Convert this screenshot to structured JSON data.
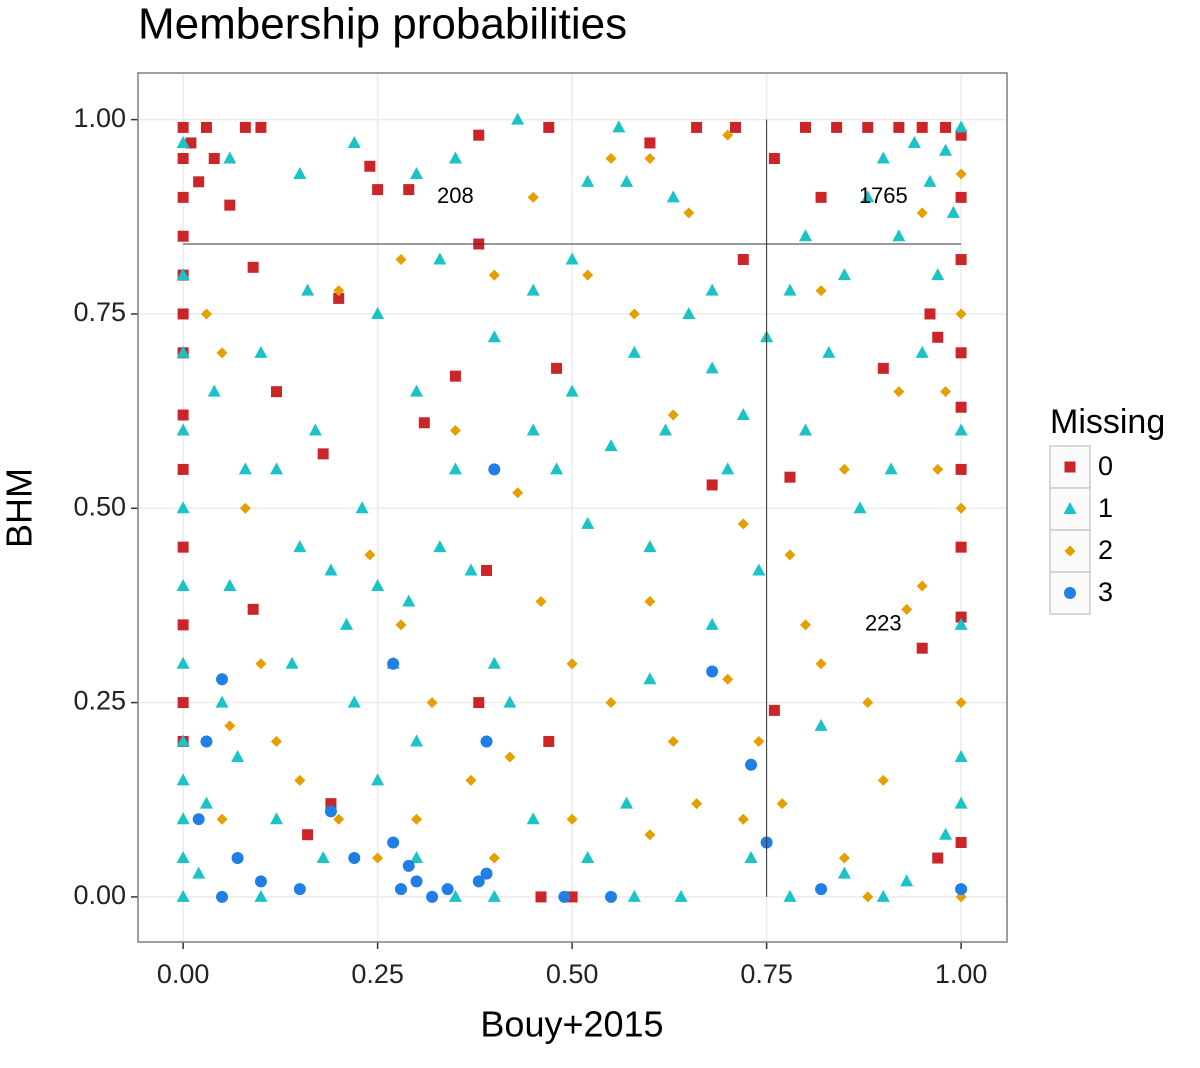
{
  "chart_data": {
    "type": "scatter",
    "title": "Membership probabilities",
    "x_label": "Bouy+2015",
    "y_label": "BHM",
    "legend_title": "Missing",
    "legend": "right",
    "grid": true,
    "xlim": [
      -0.058,
      1.059
    ],
    "ylim": [
      -0.058,
      1.06
    ],
    "xticks": [
      {
        "value": 0,
        "label": "0.00"
      },
      {
        "value": 0.25,
        "label": "0.25"
      },
      {
        "value": 0.5,
        "label": "0.50"
      },
      {
        "value": 0.75,
        "label": "0.75"
      },
      {
        "value": 1,
        "label": "1.00"
      }
    ],
    "yticks": [
      {
        "value": 0,
        "label": "0.00"
      },
      {
        "value": 0.25,
        "label": "0.25"
      },
      {
        "value": 0.5,
        "label": "0.50"
      },
      {
        "value": 0.75,
        "label": "0.75"
      },
      {
        "value": 1,
        "label": "1.00"
      }
    ],
    "reference_lines": [
      {
        "x": [
          0.75,
          0.75
        ],
        "y": [
          0,
          1
        ]
      },
      {
        "x": [
          0,
          1
        ],
        "y": [
          0.84,
          0.84
        ]
      }
    ],
    "annotations": [
      {
        "text": "208",
        "x": 0.35,
        "y": 0.9
      },
      {
        "text": "1765",
        "x": 0.9,
        "y": 0.9
      },
      {
        "text": "223",
        "x": 0.9,
        "y": 0.35
      }
    ],
    "series": [
      {
        "name": "0",
        "color": "#cc2529",
        "shape": "square",
        "x": [
          0,
          0,
          0,
          0,
          0,
          0,
          0,
          0,
          0,
          0,
          0,
          0,
          0,
          0.01,
          0.03,
          0.04,
          0.02,
          0.08,
          0.1,
          0.09,
          0.06,
          0.24,
          0.25,
          0.29,
          0.38,
          0.47,
          0.6,
          0.66,
          0.71,
          0.76,
          0.8,
          0.84,
          0.88,
          0.92,
          0.95,
          0.98,
          1,
          1,
          1,
          1,
          1,
          1,
          1,
          0.96,
          0.9,
          0.97,
          0.82,
          0.72,
          0.38,
          0.35,
          0.31,
          0.18,
          0.2,
          0.12,
          0.09,
          0.19,
          0.16,
          0.47,
          0.39,
          0.68,
          0.78,
          0.76,
          0.95,
          1,
          0.48,
          0.5,
          0.46,
          0.97,
          1,
          0.38
        ],
        "values": [
          0.99,
          0.95,
          0.9,
          0.85,
          0.8,
          0.75,
          0.7,
          0.62,
          0.55,
          0.45,
          0.35,
          0.25,
          0.2,
          0.97,
          0.99,
          0.95,
          0.92,
          0.99,
          0.99,
          0.81,
          0.89,
          0.94,
          0.91,
          0.91,
          0.98,
          0.99,
          0.97,
          0.99,
          0.99,
          0.95,
          0.99,
          0.99,
          0.99,
          0.99,
          0.99,
          0.99,
          0.98,
          0.9,
          0.82,
          0.7,
          0.63,
          0.55,
          0.45,
          0.75,
          0.68,
          0.72,
          0.9,
          0.82,
          0.84,
          0.67,
          0.61,
          0.57,
          0.77,
          0.65,
          0.37,
          0.12,
          0.08,
          0.2,
          0.42,
          0.53,
          0.54,
          0.24,
          0.32,
          0.36,
          0.68,
          0,
          0,
          0.05,
          0.07,
          0.25
        ]
      },
      {
        "name": "1",
        "color": "#1cc3c6",
        "shape": "triangle",
        "x": [
          0,
          0,
          0,
          0,
          0,
          0,
          0,
          0,
          0,
          0,
          0,
          0,
          0.02,
          0.03,
          0.05,
          0.06,
          0.08,
          0.1,
          0.04,
          0.07,
          0.12,
          0.14,
          0.15,
          0.17,
          0.19,
          0.21,
          0.23,
          0.25,
          0.27,
          0.29,
          0.3,
          0.33,
          0.35,
          0.37,
          0.4,
          0.42,
          0.45,
          0.48,
          0.5,
          0.52,
          0.55,
          0.58,
          0.6,
          0.62,
          0.65,
          0.68,
          0.7,
          0.72,
          0.75,
          0.78,
          0.8,
          0.83,
          0.85,
          0.88,
          0.9,
          0.92,
          0.94,
          0.96,
          0.98,
          1,
          0.99,
          0.97,
          0.95,
          1,
          1,
          1,
          1,
          0.98,
          0.93,
          0.9,
          0.85,
          0.78,
          0.73,
          0.74,
          0.68,
          0.6,
          0.57,
          0.52,
          0.45,
          0.4,
          0.35,
          0.3,
          0.25,
          0.22,
          0.18,
          0.1,
          0.35,
          0.43,
          0.3,
          0.22,
          0.15,
          0.52,
          0.56,
          0.63,
          0.57,
          0.68,
          0.45,
          0.25,
          0.3,
          0.4,
          0.12,
          0.82,
          0.87,
          0.91,
          0.8,
          0.64,
          0.58,
          0.06,
          0.16,
          0.33,
          0.5
        ],
        "values": [
          0,
          0.05,
          0.1,
          0.15,
          0.2,
          0.3,
          0.4,
          0.5,
          0.6,
          0.7,
          0.8,
          0.97,
          0.03,
          0.12,
          0.25,
          0.4,
          0.55,
          0.7,
          0.65,
          0.18,
          0.1,
          0.3,
          0.45,
          0.6,
          0.42,
          0.35,
          0.5,
          0.4,
          0.3,
          0.38,
          0.2,
          0.45,
          0.55,
          0.42,
          0.3,
          0.25,
          0.6,
          0.55,
          0.65,
          0.48,
          0.58,
          0.7,
          0.45,
          0.6,
          0.75,
          0.68,
          0.55,
          0.62,
          0.72,
          0.78,
          0.85,
          0.7,
          0.8,
          0.9,
          0.95,
          0.85,
          0.97,
          0.92,
          0.96,
          0.99,
          0.88,
          0.8,
          0.7,
          0.6,
          0.35,
          0.18,
          0.12,
          0.08,
          0.02,
          0,
          0.03,
          0,
          0.05,
          0.42,
          0.35,
          0.28,
          0.12,
          0.05,
          0.1,
          0,
          0,
          0.05,
          0.15,
          0.25,
          0.05,
          0,
          0.95,
          1,
          0.93,
          0.97,
          0.93,
          0.92,
          0.99,
          0.9,
          0.92,
          0.78,
          0.78,
          0.75,
          0.65,
          0.72,
          0.55,
          0.22,
          0.5,
          0.55,
          0.6,
          0,
          0,
          0.95,
          0.78,
          0.82,
          0.82
        ]
      },
      {
        "name": "2",
        "color": "#e69f00",
        "shape": "diamond",
        "x": [
          0.03,
          0.05,
          0.08,
          0.1,
          0.12,
          0.15,
          0.2,
          0.25,
          0.05,
          0.06,
          0.28,
          0.32,
          0.37,
          0.42,
          0.46,
          0.5,
          0.55,
          0.6,
          0.63,
          0.66,
          0.7,
          0.72,
          0.74,
          0.77,
          0.8,
          0.82,
          0.85,
          0.88,
          0.9,
          0.93,
          0.95,
          0.97,
          1,
          1,
          0.98,
          0.92,
          0.85,
          0.95,
          1,
          0.82,
          0.7,
          0.65,
          0.55,
          0.45,
          0.52,
          0.58,
          0.4,
          0.28,
          0.2,
          0.35,
          0.43,
          0.63,
          0.72,
          0.78,
          0.6,
          0.5,
          0.3,
          0.4,
          1,
          1,
          0.88,
          0.6,
          0.24
        ],
        "values": [
          0.75,
          0.7,
          0.5,
          0.3,
          0.2,
          0.15,
          0.1,
          0.05,
          0.1,
          0.22,
          0.35,
          0.25,
          0.15,
          0.18,
          0.38,
          0.1,
          0.25,
          0.08,
          0.2,
          0.12,
          0.28,
          0.1,
          0.2,
          0.12,
          0.35,
          0.3,
          0.05,
          0.25,
          0.15,
          0.37,
          0.4,
          0.55,
          0.5,
          0.75,
          0.65,
          0.65,
          0.55,
          0.88,
          0.93,
          0.78,
          0.98,
          0.88,
          0.95,
          0.9,
          0.8,
          0.75,
          0.8,
          0.82,
          0.78,
          0.6,
          0.52,
          0.62,
          0.48,
          0.44,
          0.38,
          0.3,
          0.1,
          0.05,
          0.25,
          0,
          0,
          0.95,
          0.44
        ]
      },
      {
        "name": "3",
        "color": "#1f7fe6",
        "shape": "circle",
        "x": [
          0.4,
          0.05,
          0.27,
          0.39,
          0.68,
          0.73,
          0.75,
          0.19,
          0.22,
          0.27,
          0.29,
          0.3,
          0.28,
          0.32,
          0.34,
          0.38,
          0.39,
          0.49,
          0.55,
          0.82,
          1,
          0.05,
          0.1,
          0.15,
          0.02,
          0.03,
          0.07
        ],
        "values": [
          0.55,
          0.28,
          0.3,
          0.2,
          0.29,
          0.17,
          0.07,
          0.11,
          0.05,
          0.07,
          0.04,
          0.02,
          0.01,
          0,
          0.01,
          0.02,
          0.03,
          0,
          0,
          0.01,
          0.01,
          0,
          0.02,
          0.01,
          0.1,
          0.2,
          0.05
        ]
      }
    ]
  }
}
